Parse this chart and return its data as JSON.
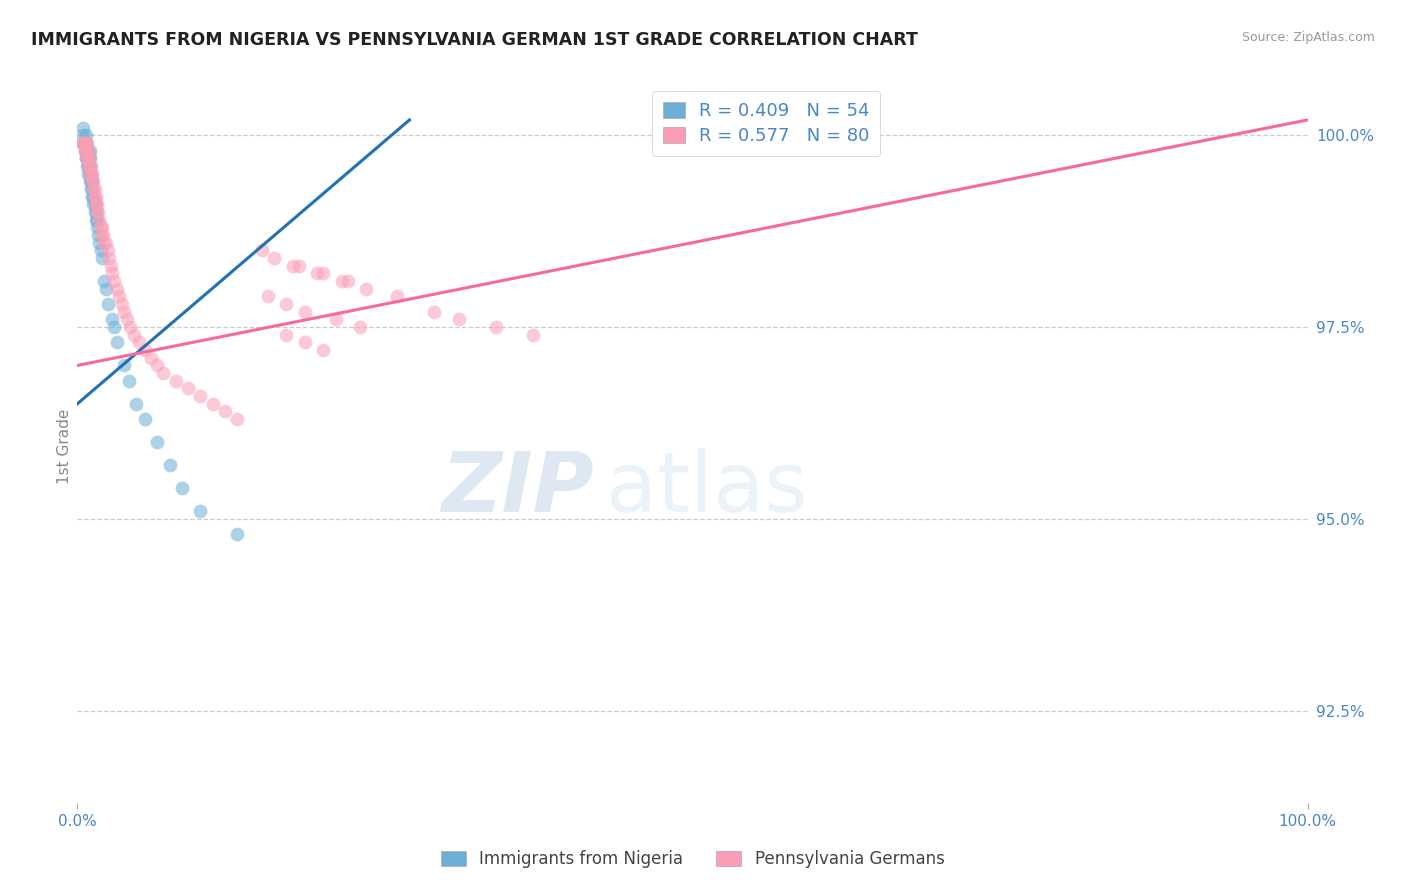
{
  "title": "IMMIGRANTS FROM NIGERIA VS PENNSYLVANIA GERMAN 1ST GRADE CORRELATION CHART",
  "source": "Source: ZipAtlas.com",
  "ylabel": "1st Grade",
  "yaxis_labels": [
    "100.0%",
    "97.5%",
    "95.0%",
    "92.5%"
  ],
  "yaxis_values": [
    1.0,
    0.975,
    0.95,
    0.925
  ],
  "legend_blue": "R = 0.409   N = 54",
  "legend_pink": "R = 0.577   N = 80",
  "legend_label_blue": "Immigrants from Nigeria",
  "legend_label_pink": "Pennsylvania Germans",
  "watermark_zip": "ZIP",
  "watermark_atlas": "atlas",
  "xlim": [
    0.0,
    1.0
  ],
  "ylim": [
    0.913,
    1.006
  ],
  "blue_color": "#6baed6",
  "pink_color": "#fb9eb5",
  "blue_line_color": "#2171b5",
  "pink_line_color": "#f768a1",
  "title_color": "#222222",
  "axis_label_color": "#4a86c8",
  "grid_color": "#cccccc",
  "background_color": "#ffffff",
  "blue_scatter_x": [
    0.005,
    0.005,
    0.005,
    0.006,
    0.006,
    0.007,
    0.007,
    0.007,
    0.007,
    0.008,
    0.008,
    0.008,
    0.009,
    0.009,
    0.009,
    0.009,
    0.01,
    0.01,
    0.01,
    0.01,
    0.01,
    0.011,
    0.011,
    0.011,
    0.012,
    0.012,
    0.012,
    0.013,
    0.013,
    0.014,
    0.014,
    0.015,
    0.015,
    0.016,
    0.016,
    0.017,
    0.018,
    0.019,
    0.02,
    0.022,
    0.023,
    0.025,
    0.028,
    0.03,
    0.032,
    0.038,
    0.042,
    0.048,
    0.055,
    0.065,
    0.075,
    0.085,
    0.1,
    0.13
  ],
  "blue_scatter_y": [
    0.999,
    1.0,
    1.001,
    0.998,
    0.999,
    0.997,
    0.998,
    0.999,
    1.0,
    0.996,
    0.997,
    0.998,
    0.995,
    0.996,
    0.997,
    0.998,
    0.994,
    0.995,
    0.996,
    0.997,
    0.998,
    0.993,
    0.994,
    0.995,
    0.992,
    0.993,
    0.994,
    0.991,
    0.992,
    0.99,
    0.991,
    0.989,
    0.99,
    0.988,
    0.989,
    0.987,
    0.986,
    0.985,
    0.984,
    0.981,
    0.98,
    0.978,
    0.976,
    0.975,
    0.973,
    0.97,
    0.968,
    0.965,
    0.963,
    0.96,
    0.957,
    0.954,
    0.951,
    0.948
  ],
  "pink_scatter_x": [
    0.004,
    0.005,
    0.006,
    0.006,
    0.007,
    0.007,
    0.007,
    0.008,
    0.008,
    0.009,
    0.009,
    0.009,
    0.01,
    0.01,
    0.01,
    0.011,
    0.011,
    0.012,
    0.012,
    0.013,
    0.013,
    0.014,
    0.014,
    0.015,
    0.015,
    0.016,
    0.016,
    0.017,
    0.018,
    0.019,
    0.02,
    0.02,
    0.021,
    0.022,
    0.023,
    0.025,
    0.026,
    0.027,
    0.028,
    0.03,
    0.032,
    0.034,
    0.036,
    0.038,
    0.04,
    0.043,
    0.046,
    0.05,
    0.055,
    0.06,
    0.065,
    0.07,
    0.08,
    0.09,
    0.1,
    0.11,
    0.12,
    0.13,
    0.15,
    0.18,
    0.2,
    0.22,
    0.26,
    0.29,
    0.31,
    0.34,
    0.37,
    0.16,
    0.175,
    0.195,
    0.215,
    0.235,
    0.155,
    0.17,
    0.185,
    0.21,
    0.23,
    0.17,
    0.185,
    0.2
  ],
  "pink_scatter_y": [
    0.999,
    0.999,
    0.999,
    0.998,
    0.999,
    0.998,
    0.997,
    0.999,
    0.998,
    0.998,
    0.997,
    0.996,
    0.997,
    0.996,
    0.995,
    0.996,
    0.995,
    0.995,
    0.994,
    0.994,
    0.993,
    0.993,
    0.992,
    0.992,
    0.991,
    0.991,
    0.99,
    0.99,
    0.989,
    0.988,
    0.988,
    0.987,
    0.987,
    0.986,
    0.986,
    0.985,
    0.984,
    0.983,
    0.982,
    0.981,
    0.98,
    0.979,
    0.978,
    0.977,
    0.976,
    0.975,
    0.974,
    0.973,
    0.972,
    0.971,
    0.97,
    0.969,
    0.968,
    0.967,
    0.966,
    0.965,
    0.964,
    0.963,
    0.985,
    0.983,
    0.982,
    0.981,
    0.979,
    0.977,
    0.976,
    0.975,
    0.974,
    0.984,
    0.983,
    0.982,
    0.981,
    0.98,
    0.979,
    0.978,
    0.977,
    0.976,
    0.975,
    0.974,
    0.973,
    0.972
  ],
  "blue_line_x": [
    0.0,
    0.27
  ],
  "blue_line_y": [
    0.965,
    1.002
  ],
  "pink_line_x": [
    0.0,
    1.0
  ],
  "pink_line_y": [
    0.97,
    1.002
  ]
}
